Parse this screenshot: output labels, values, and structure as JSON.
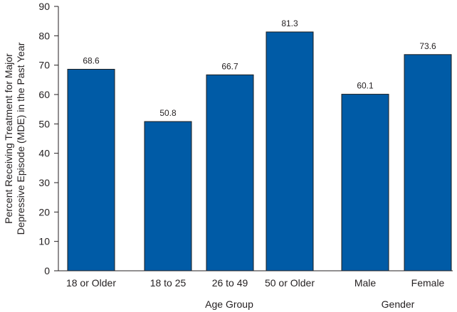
{
  "chart_data": {
    "type": "bar",
    "categories": [
      "18 or Older",
      "18 to 25",
      "26 to 49",
      "50 or Older",
      "Male",
      "Female"
    ],
    "values": [
      68.6,
      50.8,
      66.7,
      81.3,
      60.1,
      73.6
    ],
    "value_labels": [
      "68.6",
      "50.8",
      "66.7",
      "81.3",
      "60.1",
      "73.6"
    ],
    "ylabel_line1": "Percent Receiving Treatment for Major",
    "ylabel_line2": "Depressive Episode (MDE) in the Past Year",
    "ylim": [
      0,
      90
    ],
    "yticks": [
      0,
      10,
      20,
      30,
      40,
      50,
      60,
      70,
      80,
      90
    ],
    "groups": [
      {
        "label": "Age Group",
        "categories": [
          "18 to 25",
          "26 to 49",
          "50 or Older"
        ]
      },
      {
        "label": "Gender",
        "categories": [
          "Male",
          "Female"
        ]
      }
    ],
    "bar_color": "#005ba6",
    "grid": false,
    "legend": "none"
  }
}
